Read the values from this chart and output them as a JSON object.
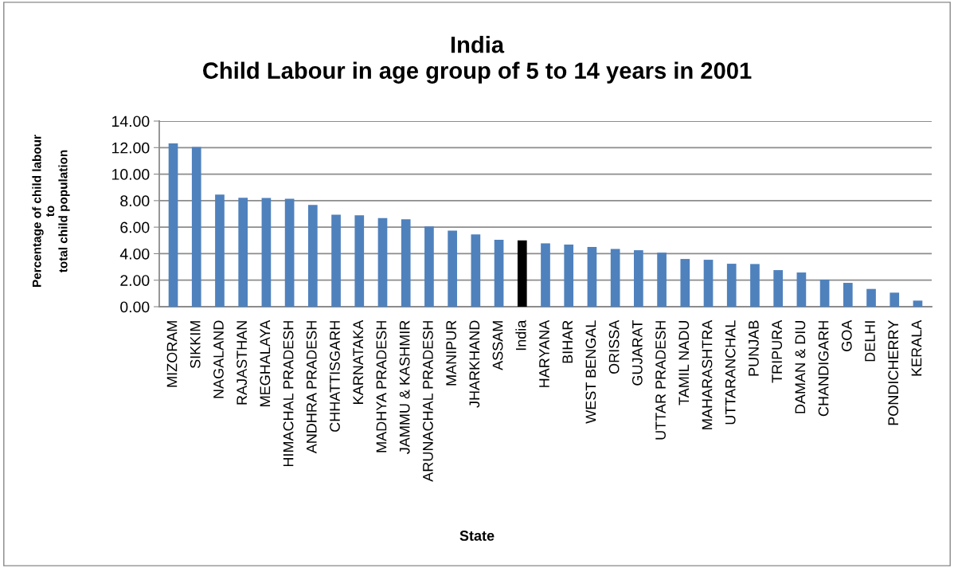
{
  "chart_data": {
    "type": "bar",
    "title": "India\nChild Labour in age group of 5 to 14 years in 2001",
    "xlabel": "State",
    "ylabel": "Percentage of child labour\nto\ntotal child population",
    "categories": [
      "MIZORAM",
      "SIKKIM",
      "NAGALAND",
      "RAJASTHAN",
      "MEGHALAYA",
      "HIMACHAL PRADESH",
      "ANDHRA PRADESH",
      "CHHATTISGARH",
      "KARNATAKA",
      "MADHYA PRADESH",
      "JAMMU & KASHMIR",
      "ARUNACHAL PRADESH",
      "MANIPUR",
      "JHARKHAND",
      "ASSAM",
      "India",
      "HARYANA",
      "BIHAR",
      "WEST BENGAL",
      "ORISSA",
      "GUJARAT",
      "UTTAR PRADESH",
      "TAMIL NADU",
      "MAHARASHTRA",
      "UTTARANCHAL",
      "PUNJAB",
      "TRIPURA",
      "DAMAN & DIU",
      "CHANDIGARH",
      "GOA",
      "DELHI",
      "PONDICHERRY",
      "KERALA"
    ],
    "values": [
      12.32,
      12.04,
      8.46,
      8.22,
      8.2,
      8.14,
      7.68,
      6.94,
      6.9,
      6.68,
      6.6,
      6.06,
      5.74,
      5.46,
      5.04,
      5.0,
      4.78,
      4.68,
      4.5,
      4.36,
      4.26,
      4.08,
      3.6,
      3.54,
      3.24,
      3.22,
      2.76,
      2.58,
      2.04,
      1.8,
      1.34,
      1.06,
      0.46
    ],
    "colors": [
      "#4f81bd",
      "#4f81bd",
      "#4f81bd",
      "#4f81bd",
      "#4f81bd",
      "#4f81bd",
      "#4f81bd",
      "#4f81bd",
      "#4f81bd",
      "#4f81bd",
      "#4f81bd",
      "#4f81bd",
      "#4f81bd",
      "#4f81bd",
      "#4f81bd",
      "#000000",
      "#4f81bd",
      "#4f81bd",
      "#4f81bd",
      "#4f81bd",
      "#4f81bd",
      "#4f81bd",
      "#4f81bd",
      "#4f81bd",
      "#4f81bd",
      "#4f81bd",
      "#4f81bd",
      "#4f81bd",
      "#4f81bd",
      "#4f81bd",
      "#4f81bd",
      "#4f81bd",
      "#4f81bd"
    ],
    "ylim": [
      0,
      14
    ],
    "yticks": [
      {
        "value": 0,
        "label": "0.00"
      },
      {
        "value": 2,
        "label": "2.00"
      },
      {
        "value": 4,
        "label": "4.00"
      },
      {
        "value": 6,
        "label": "6.00"
      },
      {
        "value": 8,
        "label": "8.00"
      },
      {
        "value": 10,
        "label": "10.00"
      },
      {
        "value": 12,
        "label": "12.00"
      },
      {
        "value": 14,
        "label": "14.00"
      }
    ],
    "grid": "y"
  }
}
